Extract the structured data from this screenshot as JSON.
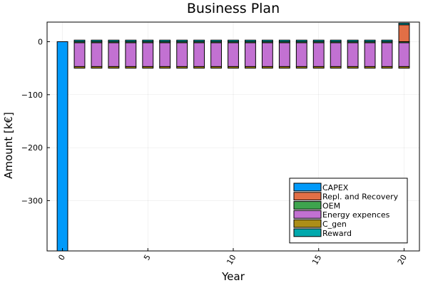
{
  "chart_data": {
    "type": "bar",
    "stacked": true,
    "title": "Business Plan",
    "xlabel": "Year",
    "ylabel": "Amount [k€]",
    "xlim": [
      -0.9,
      20.9
    ],
    "ylim": [
      -395,
      37
    ],
    "xticks": [
      0,
      5,
      10,
      15,
      20
    ],
    "xtick_labels": [
      "0",
      "5",
      "10",
      "15",
      "20"
    ],
    "yticks": [
      0,
      -100,
      -200,
      -300
    ],
    "ytick_labels": [
      "0",
      "−100",
      "−200",
      "−300"
    ],
    "grid": true,
    "legend_position": "bottom-right",
    "x": [
      0,
      1,
      2,
      3,
      4,
      5,
      6,
      7,
      8,
      9,
      10,
      11,
      12,
      13,
      14,
      15,
      16,
      17,
      18,
      19,
      20
    ],
    "series": [
      {
        "name": "CAPEX",
        "color": "#009AFA",
        "values": [
          -395,
          0,
          0,
          0,
          0,
          0,
          0,
          0,
          0,
          0,
          0,
          0,
          0,
          0,
          0,
          0,
          0,
          0,
          0,
          0,
          0
        ]
      },
      {
        "name": "Repl. and Recovery",
        "color": "#E26F46",
        "values": [
          0,
          0,
          0,
          0,
          0,
          0,
          0,
          0,
          0,
          0,
          0,
          0,
          0,
          0,
          0,
          0,
          0,
          0,
          0,
          0,
          32
        ]
      },
      {
        "name": "OEM",
        "color": "#3EA44E",
        "values": [
          0,
          -2,
          -2,
          -2,
          -2,
          -2,
          -2,
          -2,
          -2,
          -2,
          -2,
          -2,
          -2,
          -2,
          -2,
          -2,
          -2,
          -2,
          -2,
          -2,
          -2
        ]
      },
      {
        "name": "Energy expences",
        "color": "#C271D2",
        "values": [
          0,
          -45,
          -45,
          -45,
          -45,
          -45,
          -45,
          -45,
          -45,
          -45,
          -45,
          -45,
          -45,
          -45,
          -45,
          -45,
          -45,
          -45,
          -45,
          -45,
          -45
        ]
      },
      {
        "name": "C_gen",
        "color": "#AC8E18",
        "values": [
          0,
          -3,
          -3,
          -3,
          -3,
          -3,
          -3,
          -3,
          -3,
          -3,
          -3,
          -3,
          -3,
          -3,
          -3,
          -3,
          -3,
          -3,
          -3,
          -3,
          -3
        ]
      },
      {
        "name": "Reward",
        "color": "#00A9AD",
        "values": [
          0,
          3,
          3,
          3,
          3,
          3,
          3,
          3,
          3,
          3,
          3,
          3,
          3,
          3,
          3,
          3,
          3,
          3,
          3,
          3,
          3
        ]
      }
    ]
  }
}
